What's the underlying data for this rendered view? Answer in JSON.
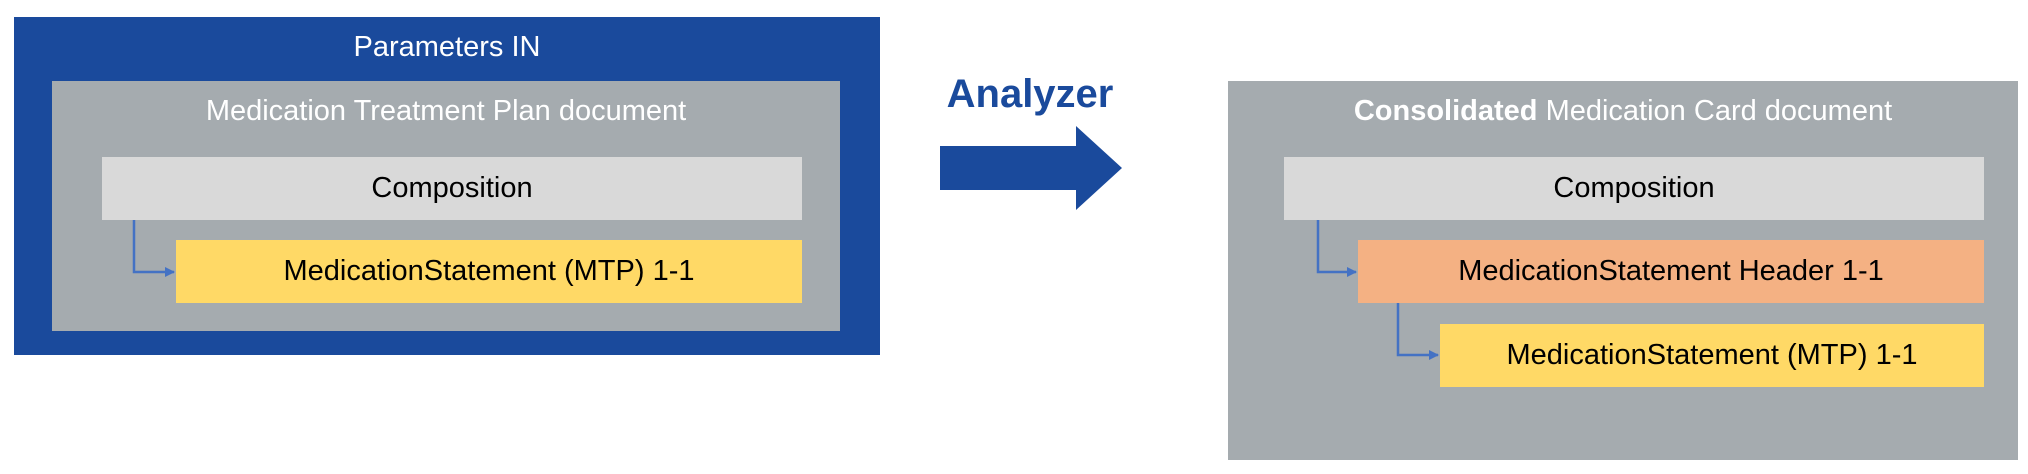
{
  "left": {
    "container_title": "Parameters IN",
    "document_title": "Medication Treatment Plan document",
    "composition": "Composition",
    "statement": "MedicationStatement (MTP) 1-1"
  },
  "middle": {
    "label": "Analyzer"
  },
  "right": {
    "document_title_bold": "Consolidated",
    "document_title_rest": " Medication Card document",
    "composition": "Composition",
    "header_statement": "MedicationStatement Header 1-1",
    "statement": "MedicationStatement (MTP) 1-1"
  },
  "colors": {
    "dark_blue": "#1a4a9c",
    "gray_container": "#a5abaf",
    "light_gray": "#d9d9d9",
    "yellow": "#ffd966",
    "orange": "#f4b183",
    "connector_blue": "#4472c4"
  }
}
